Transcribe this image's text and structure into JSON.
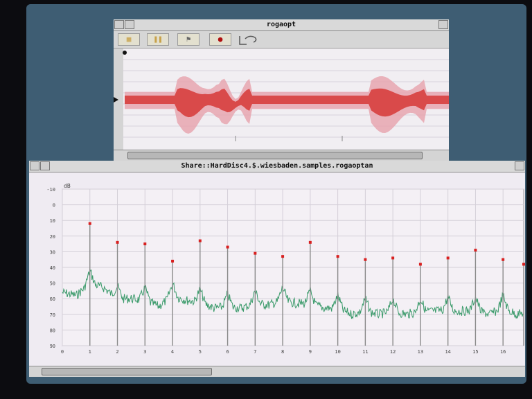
{
  "top_window": {
    "title": "rogaopt",
    "toolbar": {
      "tools": [
        {
          "name": "select-tool",
          "label": "▦"
        },
        {
          "name": "pause-tool",
          "label": "❚❚"
        },
        {
          "name": "flag-tool",
          "label": "⚑"
        },
        {
          "name": "record-tool",
          "label": "●"
        }
      ]
    },
    "waveform_color": "#d94a4a",
    "waveform_envelope_color": "#e7a6b0"
  },
  "bottom_window": {
    "title": "Share::HardDisc4.$.wiesbaden.samples.rogaoptan"
  },
  "chart_data": {
    "type": "line",
    "ylabel": "dB",
    "ylim": [
      0,
      -90
    ],
    "yticks": [
      "-10",
      "0",
      "10",
      "20",
      "30",
      "40",
      "50",
      "60",
      "70",
      "80",
      "90"
    ],
    "xlim": [
      0,
      16.75
    ],
    "xticks": [
      "0",
      "1",
      "2",
      "3",
      "4",
      "5",
      "6",
      "7",
      "8",
      "9",
      "10",
      "11",
      "12",
      "13",
      "14",
      "15",
      "16"
    ],
    "grid": true,
    "series": [
      {
        "color": "#3a9a6a",
        "baseline": [
          [
            0,
            56
          ],
          [
            0.5,
            58
          ],
          [
            1,
            50
          ],
          [
            1.5,
            53
          ],
          [
            2,
            60
          ],
          [
            2.5,
            60
          ],
          [
            3,
            61
          ],
          [
            3.5,
            65
          ],
          [
            4,
            58
          ],
          [
            4.5,
            61
          ],
          [
            5,
            62
          ],
          [
            5.5,
            66
          ],
          [
            6,
            65
          ],
          [
            6.5,
            66
          ],
          [
            7,
            63
          ],
          [
            7.5,
            64
          ],
          [
            8,
            61
          ],
          [
            8.5,
            63
          ],
          [
            9,
            63
          ],
          [
            9.5,
            66
          ],
          [
            10,
            66
          ],
          [
            10.5,
            70
          ],
          [
            11,
            68
          ],
          [
            11.5,
            70
          ],
          [
            12,
            68
          ],
          [
            12.5,
            70
          ],
          [
            13,
            68
          ],
          [
            13.5,
            68
          ],
          [
            14,
            67
          ],
          [
            14.5,
            68
          ],
          [
            15,
            67
          ],
          [
            15.5,
            70
          ],
          [
            16,
            66
          ],
          [
            16.5,
            70
          ],
          [
            16.75,
            69
          ]
        ]
      },
      {
        "color": "#8a8a8a",
        "peak_marker_color": "#d92020",
        "peaks": [
          {
            "x": 1,
            "y": 12
          },
          {
            "x": 2,
            "y": 24
          },
          {
            "x": 3,
            "y": 25
          },
          {
            "x": 4,
            "y": 36
          },
          {
            "x": 5,
            "y": 23
          },
          {
            "x": 6,
            "y": 27
          },
          {
            "x": 7,
            "y": 31
          },
          {
            "x": 8,
            "y": 33
          },
          {
            "x": 9,
            "y": 24
          },
          {
            "x": 10,
            "y": 33
          },
          {
            "x": 11,
            "y": 35
          },
          {
            "x": 12,
            "y": 34
          },
          {
            "x": 13,
            "y": 38
          },
          {
            "x": 14,
            "y": 34
          },
          {
            "x": 15,
            "y": 29
          },
          {
            "x": 16,
            "y": 35
          },
          {
            "x": 16.75,
            "y": 38
          }
        ]
      }
    ]
  }
}
